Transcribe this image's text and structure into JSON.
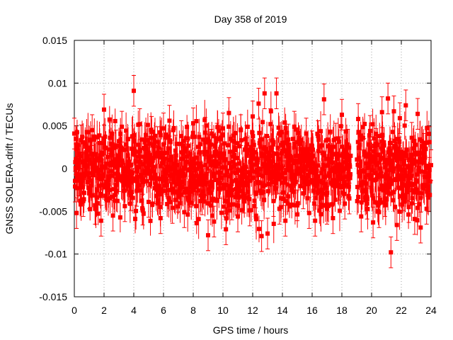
{
  "chart_data": {
    "type": "scatter",
    "title": "Day 358 of 2019",
    "xlabel": "GPS time / hours",
    "ylabel": "GNSS SOLERA-drift / TECUs",
    "xlim": [
      0,
      24
    ],
    "ylim": [
      -0.015,
      0.015
    ],
    "xticks": [
      "0",
      "2",
      "4",
      "6",
      "8",
      "10",
      "12",
      "14",
      "16",
      "18",
      "20",
      "22",
      "24"
    ],
    "yticks": [
      "-0.015",
      "-0.01",
      "-0.005",
      "0",
      "0.005",
      "0.01",
      "0.015"
    ],
    "grid": true,
    "error_bars": true,
    "marker": "square",
    "series_color": "#ff0000",
    "data_gap_hours": [
      18.6,
      19.0
    ],
    "series": [
      {
        "x": [
          0.0,
          0.05,
          0.1,
          0.15,
          0.2,
          0.3,
          0.45,
          0.6,
          0.8,
          1.0,
          1.2,
          1.4,
          1.6,
          1.8,
          2.0,
          2.2,
          2.4,
          2.6,
          2.8,
          3.0,
          3.2,
          3.4,
          3.6,
          3.8,
          4.0,
          4.2,
          4.4,
          4.6,
          4.8,
          5.0,
          5.2,
          5.4,
          5.6,
          5.8,
          6.0,
          6.2,
          6.4,
          6.6,
          6.8,
          7.0,
          7.2,
          7.4,
          7.6,
          7.8,
          8.0,
          8.2,
          8.4,
          8.6,
          8.8,
          9.0,
          9.2,
          9.4,
          9.6,
          9.8,
          10.0,
          10.2,
          10.4,
          10.6,
          10.8,
          11.0,
          11.2,
          11.4,
          11.6,
          11.8,
          12.0,
          12.2,
          12.4,
          12.6,
          12.8,
          13.0,
          13.2,
          13.4,
          13.6,
          13.8,
          14.0,
          14.2,
          14.4,
          14.6,
          14.8,
          15.0,
          15.2,
          15.4,
          15.6,
          15.8,
          16.0,
          16.2,
          16.4,
          16.6,
          16.8,
          17.0,
          17.2,
          17.4,
          17.6,
          17.8,
          18.0,
          18.2,
          18.4,
          18.5,
          19.1,
          19.3,
          19.5,
          19.7,
          19.9,
          20.1,
          20.3,
          20.5,
          20.7,
          20.9,
          21.1,
          21.3,
          21.5,
          21.7,
          21.9,
          22.1,
          22.3,
          22.5,
          22.7,
          22.9,
          23.1,
          23.3,
          23.5,
          23.7,
          23.9,
          24.0
        ],
        "y": [
          0.0041,
          -0.0021,
          0.0011,
          -0.0052,
          0.0024,
          -0.0014,
          0.0033,
          -0.0038,
          0.0019,
          -0.0029,
          0.0045,
          -0.0047,
          0.0012,
          -0.0061,
          0.0069,
          -0.0018,
          0.0036,
          -0.0055,
          0.0027,
          -0.0009,
          0.0049,
          -0.0044,
          0.0015,
          -0.0031,
          0.0091,
          -0.0026,
          0.0052,
          -0.0048,
          0.0008,
          -0.0039,
          0.0043,
          -0.0023,
          0.0031,
          -0.0058,
          0.0047,
          -0.0012,
          0.0056,
          -0.0046,
          0.0021,
          -0.0033,
          0.0038,
          -0.0051,
          0.0014,
          -0.0027,
          0.0053,
          -0.0044,
          0.0019,
          -0.0036,
          0.0042,
          -0.0078,
          0.0028,
          -0.0062,
          0.0035,
          -0.0017,
          0.0047,
          -0.0071,
          0.0065,
          -0.0042,
          0.0024,
          -0.0056,
          0.0045,
          -0.0034,
          0.0018,
          -0.0049,
          0.0061,
          -0.0028,
          0.0076,
          -0.0079,
          0.0088,
          -0.0076,
          0.0052,
          -0.0038,
          0.0088,
          -0.0047,
          0.0027,
          -0.0061,
          0.0034,
          -0.0022,
          0.0049,
          -0.0043,
          0.0012,
          -0.0029,
          0.0041,
          -0.0052,
          0.0026,
          -0.0061,
          0.0038,
          -0.0034,
          0.0081,
          -0.0047,
          0.0022,
          -0.0058,
          0.0035,
          -0.0019,
          0.0063,
          -0.0041,
          0.0028,
          -0.0035,
          0.0058,
          -0.0056,
          0.0017,
          -0.0041,
          0.0044,
          -0.0063,
          0.0029,
          -0.0051,
          0.0066,
          -0.0038,
          0.0082,
          -0.0098,
          0.0067,
          -0.0066,
          0.0059,
          -0.0031,
          0.0074,
          -0.0045,
          0.0036,
          -0.0059,
          0.0064,
          -0.0069,
          0.0023,
          -0.0047,
          0.0031,
          0.0004
        ]
      }
    ]
  }
}
